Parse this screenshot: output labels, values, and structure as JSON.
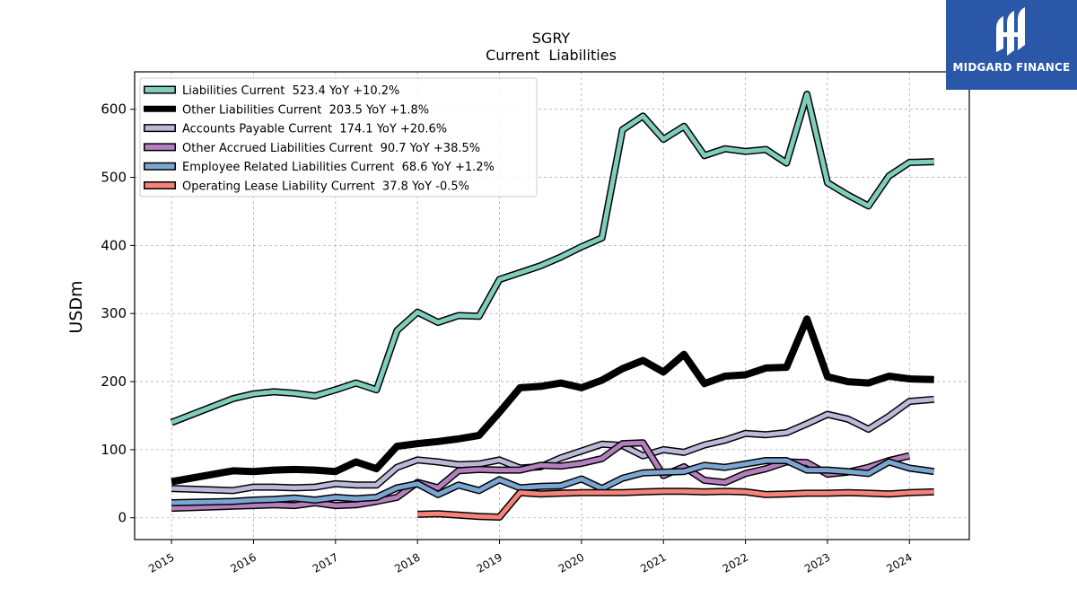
{
  "chart_data": {
    "type": "line",
    "title": "SGRY",
    "subtitle": "Current  Liabilities",
    "ylabel": "USDm",
    "xlabel": "",
    "ylim": [
      -32,
      655
    ],
    "yticks": [
      0,
      100,
      200,
      300,
      400,
      500,
      600
    ],
    "xlim": [
      2014.55,
      2024.73
    ],
    "xticks": [
      "2015",
      "2016",
      "2017",
      "2018",
      "2019",
      "2020",
      "2021",
      "2022",
      "2023",
      "2024"
    ],
    "grid": true,
    "legend_position": "top-left",
    "series": [
      {
        "name": "Liabilities Current  523.4 YoY +10.2%",
        "color": "#7fcdbb",
        "linewidth": 5,
        "x": [
          2015.0,
          2015.75,
          2016.0,
          2016.25,
          2016.5,
          2016.75,
          2017.0,
          2017.25,
          2017.5,
          2017.75,
          2018.0,
          2018.25,
          2018.5,
          2018.75,
          2019.0,
          2019.25,
          2019.5,
          2019.75,
          2020.0,
          2020.25,
          2020.5,
          2020.75,
          2021.0,
          2021.25,
          2021.5,
          2021.75,
          2022.0,
          2022.25,
          2022.5,
          2022.75,
          2023.0,
          2023.25,
          2023.5,
          2023.75,
          2024.0,
          2024.3
        ],
        "y": [
          140,
          175,
          182,
          185,
          183,
          179,
          188,
          198,
          188,
          275,
          302,
          287,
          297,
          296,
          350,
          360,
          370,
          383,
          398,
          411,
          570,
          590,
          556,
          575,
          532,
          542,
          538,
          541,
          521,
          622,
          492,
          474,
          458,
          502,
          522,
          523
        ]
      },
      {
        "name": "Other Liabilities Current  203.5 YoY +1.8%",
        "color": "#000000",
        "linewidth": 8,
        "x": [
          2015.0,
          2015.75,
          2016.0,
          2016.25,
          2016.5,
          2016.75,
          2017.0,
          2017.25,
          2017.5,
          2017.75,
          2018.0,
          2018.25,
          2018.5,
          2018.75,
          2019.0,
          2019.25,
          2019.5,
          2019.75,
          2020.0,
          2020.25,
          2020.5,
          2020.75,
          2021.0,
          2021.25,
          2021.5,
          2021.75,
          2022.0,
          2022.25,
          2022.5,
          2022.75,
          2023.0,
          2023.25,
          2023.5,
          2023.75,
          2024.0,
          2024.3
        ],
        "y": [
          53,
          69,
          68,
          70,
          71,
          70,
          68,
          82,
          72,
          105,
          109,
          112,
          116,
          121,
          155,
          191,
          193,
          198,
          191,
          202,
          219,
          231,
          214,
          240,
          197,
          208,
          210,
          220,
          221,
          292,
          207,
          200,
          198,
          208,
          204,
          203
        ]
      },
      {
        "name": "Accounts Payable Current  174.1 YoY +20.6%",
        "color": "#bcb8d9",
        "linewidth": 5,
        "x": [
          2015.0,
          2015.75,
          2016.0,
          2016.25,
          2016.5,
          2016.75,
          2017.0,
          2017.25,
          2017.5,
          2017.75,
          2018.0,
          2018.25,
          2018.5,
          2018.75,
          2019.0,
          2019.25,
          2019.5,
          2019.75,
          2020.0,
          2020.25,
          2020.5,
          2020.75,
          2021.0,
          2021.25,
          2021.5,
          2021.75,
          2022.0,
          2022.25,
          2022.5,
          2022.75,
          2023.0,
          2023.25,
          2023.5,
          2023.75,
          2024.0,
          2024.3
        ],
        "y": [
          43,
          40,
          45,
          45,
          44,
          45,
          50,
          48,
          48,
          74,
          85,
          82,
          78,
          79,
          85,
          73,
          75,
          88,
          98,
          108,
          106,
          91,
          100,
          96,
          107,
          114,
          124,
          122,
          125,
          138,
          152,
          145,
          130,
          149,
          171,
          174
        ]
      },
      {
        "name": "Other Accrued Liabilities Current  90.7 YoY +38.5%",
        "color": "#b57fbd",
        "linewidth": 5,
        "x": [
          2015.0,
          2015.75,
          2016.0,
          2016.25,
          2016.5,
          2016.75,
          2017.0,
          2017.25,
          2017.5,
          2017.75,
          2018.0,
          2018.25,
          2018.5,
          2018.75,
          2019.0,
          2019.25,
          2019.5,
          2019.75,
          2020.0,
          2020.25,
          2020.5,
          2020.75,
          2021.0,
          2021.25,
          2021.5,
          2021.75,
          2022.0,
          2022.25,
          2022.5,
          2022.75,
          2023.0,
          2023.25,
          2023.5,
          2023.75,
          2024.0
        ],
        "y": [
          14,
          17,
          18,
          19,
          18,
          22,
          18,
          19,
          24,
          30,
          52,
          44,
          69,
          71,
          70,
          70,
          77,
          76,
          80,
          87,
          109,
          110,
          62,
          75,
          55,
          52,
          65,
          72,
          82,
          81,
          64,
          67,
          74,
          84,
          91
        ]
      },
      {
        "name": "Employee Related Liabilities Current  68.6 YoY +1.2%",
        "color": "#7ba6d1",
        "linewidth": 5,
        "x": [
          2015.0,
          2015.75,
          2016.0,
          2016.25,
          2016.5,
          2016.75,
          2017.0,
          2017.25,
          2017.5,
          2017.75,
          2018.0,
          2018.25,
          2018.5,
          2018.75,
          2019.0,
          2019.25,
          2019.5,
          2019.75,
          2020.0,
          2020.25,
          2020.5,
          2020.75,
          2021.0,
          2021.25,
          2021.5,
          2021.75,
          2022.0,
          2022.25,
          2022.5,
          2022.75,
          2023.0,
          2023.25,
          2023.5,
          2023.75,
          2024.0,
          2024.3
        ],
        "y": [
          22,
          24,
          26,
          27,
          29,
          26,
          30,
          28,
          30,
          44,
          50,
          34,
          48,
          40,
          56,
          44,
          46,
          47,
          57,
          43,
          58,
          66,
          67,
          68,
          77,
          74,
          79,
          84,
          84,
          70,
          70,
          68,
          65,
          82,
          73,
          68
        ]
      },
      {
        "name": "Operating Lease Liability Current  37.8 YoY -0.5%",
        "color": "#f4837a",
        "linewidth": 5,
        "x": [
          2018.0,
          2018.25,
          2018.5,
          2018.75,
          2019.0,
          2019.25,
          2019.5,
          2019.75,
          2020.0,
          2020.25,
          2020.5,
          2020.75,
          2021.0,
          2021.25,
          2021.5,
          2021.75,
          2022.0,
          2022.25,
          2022.5,
          2022.75,
          2023.0,
          2023.25,
          2023.5,
          2023.75,
          2024.0,
          2024.3
        ],
        "y": [
          5,
          6,
          4,
          2,
          1,
          37,
          35,
          36,
          37,
          37,
          37,
          38,
          39,
          39,
          38,
          39,
          38,
          34,
          35,
          36,
          36,
          37,
          36,
          35,
          37,
          38
        ]
      }
    ]
  },
  "brand": {
    "name": "MIDGARD FINANCE",
    "icon": "midgard-logo-icon",
    "color": "#2a57a8"
  }
}
